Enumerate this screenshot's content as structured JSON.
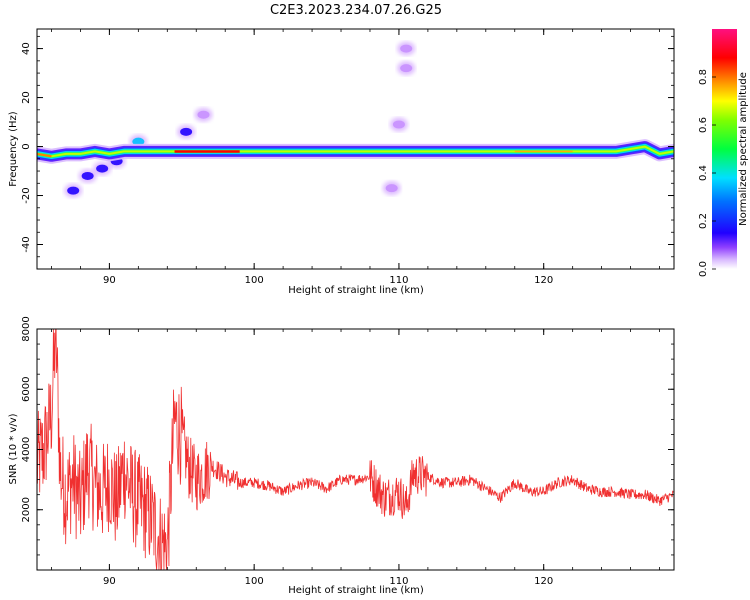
{
  "title": "C2E3.2023.234.07.26.G25",
  "chart_data": [
    {
      "type": "heatmap",
      "xlabel": "Height of straight line (km)",
      "ylabel": "Frequency (Hz)",
      "xlim": [
        85,
        129
      ],
      "ylim": [
        -50,
        48
      ],
      "xticks": [
        90,
        100,
        110,
        120
      ],
      "yticks": [
        -40,
        -20,
        0,
        20,
        40
      ],
      "colorbar": {
        "label": "Normalized spectral amplitude",
        "range": [
          0.0,
          1.0
        ],
        "ticks": [
          0.0,
          0.2,
          0.4,
          0.6,
          0.8
        ],
        "colormap": [
          "#ffffff",
          "#c080ff",
          "#2000ff",
          "#00e0ff",
          "#00ff40",
          "#ffff00",
          "#ff8000",
          "#ff0000",
          "#ff1080"
        ]
      },
      "ridge": [
        {
          "x": 85,
          "y": -3
        },
        {
          "x": 86,
          "y": -4
        },
        {
          "x": 87,
          "y": -3
        },
        {
          "x": 88,
          "y": -3
        },
        {
          "x": 89,
          "y": -2
        },
        {
          "x": 90,
          "y": -3
        },
        {
          "x": 91,
          "y": -2
        },
        {
          "x": 92,
          "y": -2
        },
        {
          "x": 93,
          "y": -2
        },
        {
          "x": 94,
          "y": -2
        },
        {
          "x": 96,
          "y": -2
        },
        {
          "x": 100,
          "y": -2
        },
        {
          "x": 105,
          "y": -2
        },
        {
          "x": 110,
          "y": -2
        },
        {
          "x": 115,
          "y": -2
        },
        {
          "x": 120,
          "y": -2
        },
        {
          "x": 125,
          "y": -2
        },
        {
          "x": 127,
          "y": 0
        },
        {
          "x": 128,
          "y": -3
        },
        {
          "x": 129,
          "y": -2
        }
      ],
      "blobs": [
        {
          "x": 87.5,
          "y": -18,
          "amp": 0.25
        },
        {
          "x": 88.5,
          "y": -12,
          "amp": 0.3
        },
        {
          "x": 89.5,
          "y": -9,
          "amp": 0.25
        },
        {
          "x": 90.5,
          "y": -6,
          "amp": 0.3
        },
        {
          "x": 92,
          "y": 2,
          "amp": 0.35
        },
        {
          "x": 95.3,
          "y": 6,
          "amp": 0.3
        },
        {
          "x": 96.5,
          "y": 13,
          "amp": 0.08
        },
        {
          "x": 110.5,
          "y": 40,
          "amp": 0.06
        },
        {
          "x": 110.5,
          "y": 32,
          "amp": 0.08
        },
        {
          "x": 110,
          "y": 9,
          "amp": 0.1
        },
        {
          "x": 109.5,
          "y": -17,
          "amp": 0.08
        }
      ]
    },
    {
      "type": "line",
      "xlabel": "Height of straight line (km)",
      "ylabel": "SNR (10 * v/v)",
      "xlim": [
        85,
        129
      ],
      "ylim": [
        0,
        8000
      ],
      "xticks": [
        90,
        100,
        110,
        120
      ],
      "yticks": [
        2000,
        4000,
        6000,
        8000
      ],
      "color": "#f03030",
      "series": [
        {
          "x": [
            85,
            85.5,
            86,
            86.3,
            86.6,
            87,
            87.5,
            88,
            88.5,
            89,
            89.5,
            90,
            90.5,
            91,
            91.5,
            92,
            92.5,
            93,
            93.5,
            94,
            94.5,
            95,
            95.5,
            96,
            96.5,
            97,
            98,
            99,
            100,
            101,
            102,
            103,
            104,
            105,
            106,
            107,
            108,
            109,
            110,
            110.5,
            111,
            112,
            113,
            114,
            115,
            116,
            117,
            118,
            119,
            120,
            121,
            122,
            123,
            124,
            125,
            126,
            127,
            128,
            129
          ],
          "y": [
            3500,
            4000,
            5200,
            8000,
            3300,
            2500,
            3000,
            2200,
            3500,
            2800,
            2500,
            3000,
            2200,
            3400,
            2600,
            2200,
            2000,
            1600,
            1000,
            700,
            5000,
            4400,
            3400,
            3000,
            3200,
            3500,
            3100,
            2900,
            2900,
            2800,
            2600,
            2800,
            2900,
            2700,
            3000,
            3000,
            3100,
            2400,
            2600,
            2100,
            3200,
            3100,
            2900,
            2900,
            3000,
            2700,
            2400,
            2900,
            2600,
            2600,
            2900,
            3000,
            2700,
            2600,
            2600,
            2500,
            2500,
            2300,
            2500
          ]
        }
      ]
    }
  ]
}
